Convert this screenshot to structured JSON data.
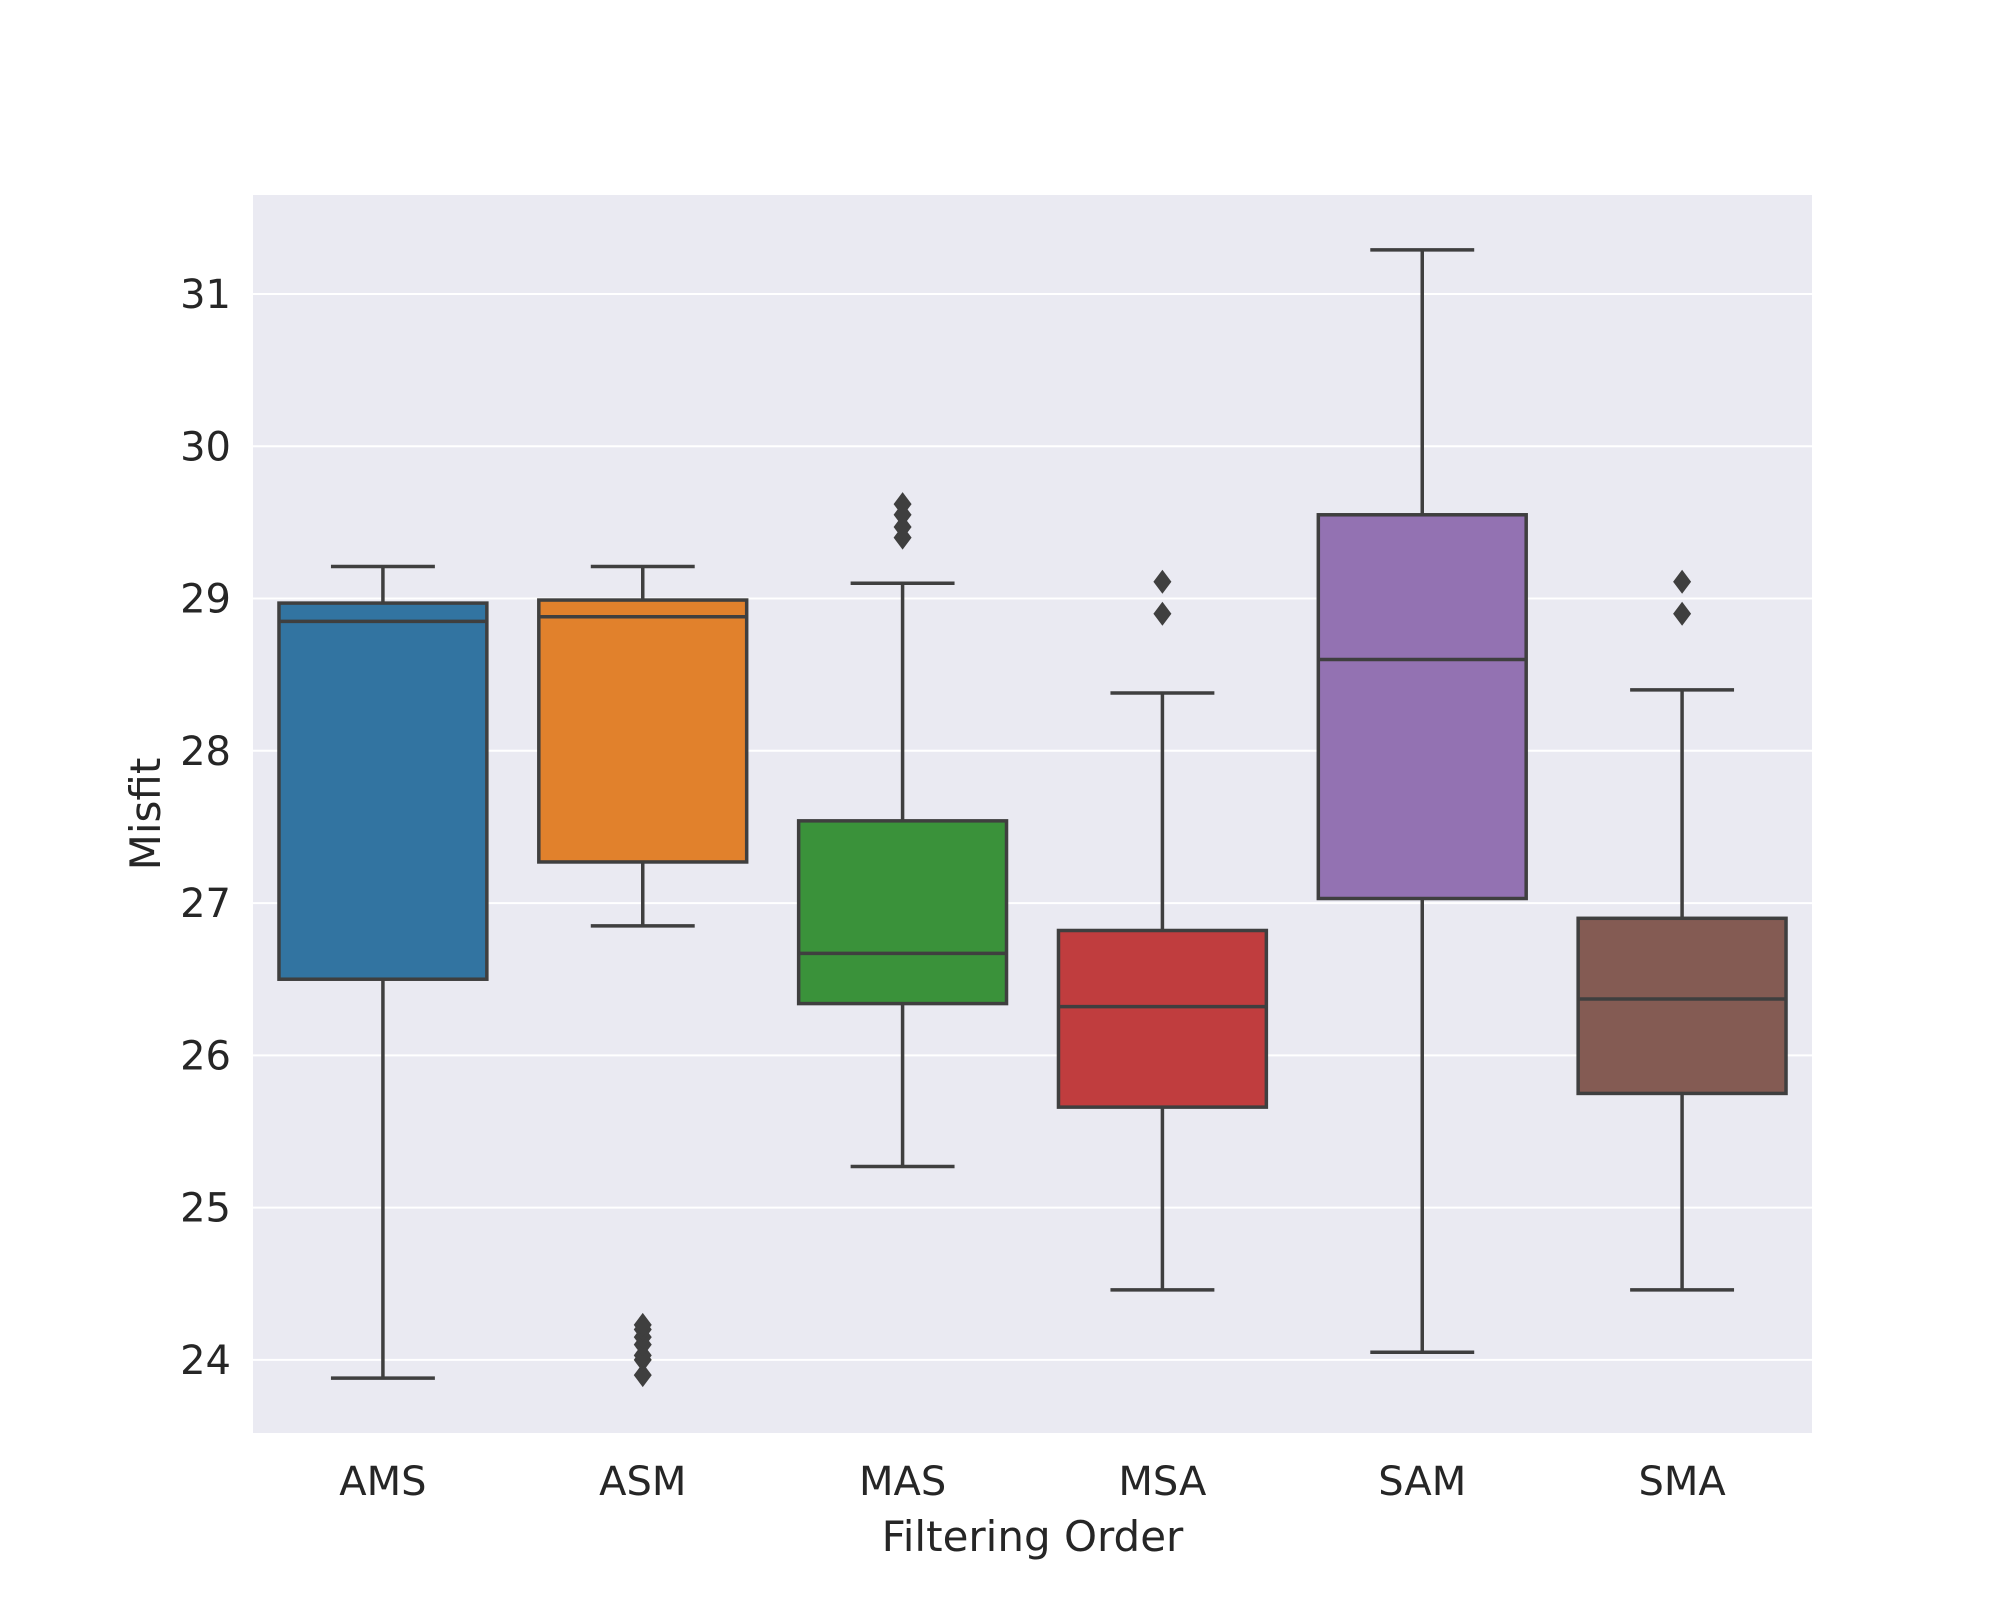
{
  "chart_data": {
    "type": "box",
    "title": "",
    "xlabel": "Filtering Order",
    "ylabel": "Misfit",
    "ylim": [
      23.52,
      31.65
    ],
    "yticks": [
      24,
      25,
      26,
      27,
      28,
      29,
      30,
      31
    ],
    "grid": true,
    "legend": "none",
    "background": "#eaeaf2",
    "grid_color": "#ffffff",
    "line_color": "#3f3f3f",
    "categories": [
      "AMS",
      "ASM",
      "MAS",
      "MSA",
      "SAM",
      "SMA"
    ],
    "boxes": [
      {
        "label": "AMS",
        "color": "#3274a1",
        "whisker_low": 23.88,
        "q1": 26.5,
        "median": 28.85,
        "q3": 28.97,
        "whisker_high": 29.21,
        "outliers": []
      },
      {
        "label": "ASM",
        "color": "#e1812c",
        "whisker_low": 26.85,
        "q1": 27.27,
        "median": 28.88,
        "q3": 28.99,
        "whisker_high": 29.21,
        "outliers": [
          23.9,
          24.0,
          24.03,
          24.1,
          24.15,
          24.2,
          24.23
        ]
      },
      {
        "label": "MAS",
        "color": "#3a923a",
        "whisker_low": 25.27,
        "q1": 26.34,
        "median": 26.67,
        "q3": 27.54,
        "whisker_high": 29.1,
        "outliers": [
          29.4,
          29.47,
          29.55,
          29.62
        ]
      },
      {
        "label": "MSA",
        "color": "#c03d3e",
        "whisker_low": 24.46,
        "q1": 25.66,
        "median": 26.32,
        "q3": 26.82,
        "whisker_high": 28.38,
        "outliers": [
          28.9,
          29.11
        ]
      },
      {
        "label": "SAM",
        "color": "#9372b2",
        "whisker_low": 24.05,
        "q1": 27.03,
        "median": 28.6,
        "q3": 29.55,
        "whisker_high": 31.29,
        "outliers": []
      },
      {
        "label": "SMA",
        "color": "#845b53",
        "whisker_low": 24.46,
        "q1": 25.75,
        "median": 26.37,
        "q3": 26.9,
        "whisker_high": 28.4,
        "outliers": [
          28.9,
          29.11
        ]
      }
    ]
  }
}
